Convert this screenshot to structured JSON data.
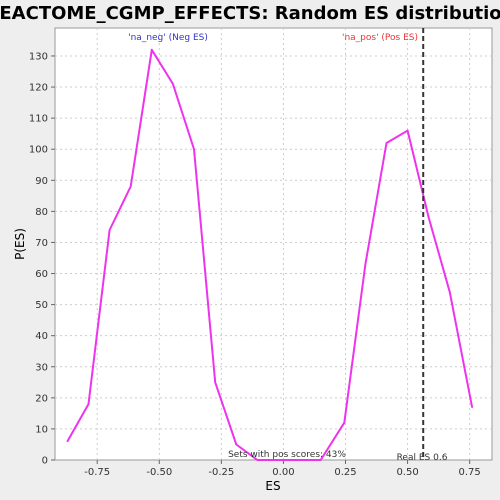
{
  "chart_data": {
    "type": "line",
    "title": "REACTOME_CGMP_EFFECTS: Random ES distribution",
    "xlabel": "ES",
    "ylabel": "P(ES)",
    "xlim": [
      -0.92,
      0.84
    ],
    "ylim": [
      0,
      139
    ],
    "x_ticks": [
      -0.75,
      -0.5,
      -0.25,
      0.0,
      0.25,
      0.5,
      0.75
    ],
    "x_tick_labels": [
      "-0.75",
      "-0.50",
      "-0.25",
      "0.00",
      "0.25",
      "0.50",
      "0.75"
    ],
    "y_ticks": [
      0,
      10,
      20,
      30,
      40,
      50,
      60,
      70,
      80,
      90,
      100,
      110,
      120,
      130
    ],
    "grid": true,
    "series": [
      {
        "color": "#ee33ee",
        "x": [
          -0.87,
          -0.785,
          -0.7,
          -0.615,
          -0.53,
          -0.445,
          -0.36,
          -0.275,
          -0.19,
          -0.105,
          -0.02,
          0.065,
          0.15,
          0.245,
          0.33,
          0.415,
          0.5,
          0.585,
          0.67,
          0.76
        ],
        "y": [
          6,
          18,
          74,
          88,
          132,
          121,
          100,
          25,
          5,
          0,
          0,
          0,
          0,
          12,
          63,
          102,
          106,
          78,
          54,
          17
        ]
      }
    ],
    "annotations": {
      "neg_label": "'na_neg' (Neg ES)",
      "pos_label": "'na_pos' (Pos ES)",
      "real_es_label": "Real ES 0.6",
      "real_es_value": 0.563,
      "pos_scores_label": "Sets with pos scores: 43%"
    },
    "colors": {
      "line": "#ee33ee",
      "neg_text": "#3333cc",
      "pos_text": "#ee3333",
      "grid": "#cccccc",
      "plot_bg": "#ffffff",
      "page_bg": "#eeeeee"
    }
  }
}
